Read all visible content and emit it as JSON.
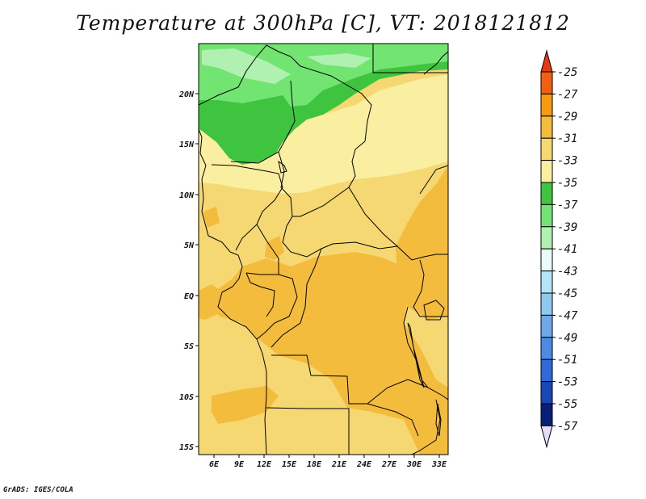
{
  "title": "Temperature at 300hPa [C], VT: 2018121812",
  "credit": "GrADS: IGES/COLA",
  "axes": {
    "lat_labels": [
      "20N",
      "15N",
      "10N",
      "5N",
      "EQ",
      "5S",
      "10S",
      "15S"
    ],
    "lon_labels": [
      "6E",
      "9E",
      "12E",
      "15E",
      "18E",
      "21E",
      "24E",
      "27E",
      "30E",
      "33E"
    ]
  },
  "colorbar": {
    "labels": [
      "-25",
      "-27",
      "-29",
      "-31",
      "-33",
      "-35",
      "-37",
      "-39",
      "-41",
      "-43",
      "-45",
      "-47",
      "-49",
      "-51",
      "-53",
      "-55",
      "-57"
    ],
    "colors": [
      "#f06010",
      "#f89a10",
      "#f4bc3c",
      "#f6d872",
      "#faeea0",
      "#3ec43e",
      "#72e472",
      "#b0f0b0",
      "#e8fcfc",
      "#b4e4f8",
      "#90c8f0",
      "#6eaaea",
      "#4c8ae4",
      "#2e6ad8",
      "#1848b8",
      "#0a1e78"
    ],
    "top_arrow_color": "#e83a10",
    "bottom_arrow_color": "#e4dcf8"
  },
  "map_colors": {
    "light_yellow": "#faeea0",
    "yellow": "#f6d872",
    "orange": "#f4bc3c",
    "green": "#3ec43e",
    "light_green": "#72e472",
    "pale_green": "#b0f0b0"
  }
}
